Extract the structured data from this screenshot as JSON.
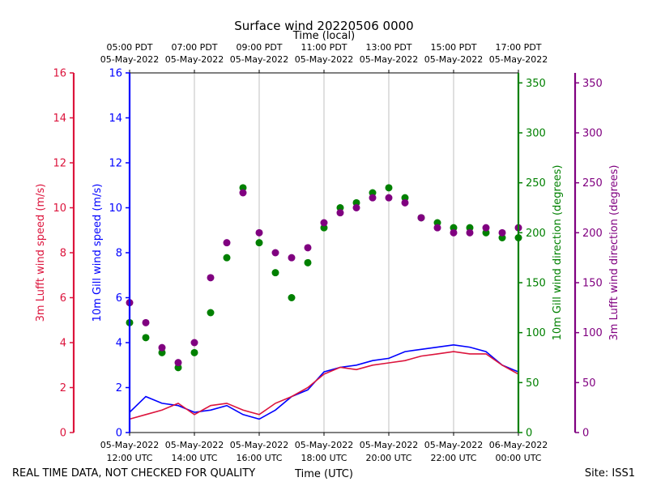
{
  "chart_data": {
    "type": "scatter",
    "title": "Surface wind 20220506 0000",
    "top_axis_label": "Time (local)",
    "xlabel": "Time (UTC)",
    "footer_left": "REAL TIME DATA, NOT CHECKED FOR QUALITY",
    "footer_right": "Site: ISS1",
    "x_range_hours_utc": [
      12,
      24
    ],
    "x_ticks_bottom": [
      {
        "hour": 12,
        "line1": "05-May-2022",
        "line2": "12:00 UTC"
      },
      {
        "hour": 14,
        "line1": "05-May-2022",
        "line2": "14:00 UTC"
      },
      {
        "hour": 16,
        "line1": "05-May-2022",
        "line2": "16:00 UTC"
      },
      {
        "hour": 18,
        "line1": "05-May-2022",
        "line2": "18:00 UTC"
      },
      {
        "hour": 20,
        "line1": "05-May-2022",
        "line2": "20:00 UTC"
      },
      {
        "hour": 22,
        "line1": "05-May-2022",
        "line2": "22:00 UTC"
      },
      {
        "hour": 24,
        "line1": "06-May-2022",
        "line2": "00:00 UTC"
      }
    ],
    "x_ticks_top": [
      {
        "hour": 12,
        "line1": "05:00 PDT",
        "line2": "05-May-2022"
      },
      {
        "hour": 14,
        "line1": "07:00 PDT",
        "line2": "05-May-2022"
      },
      {
        "hour": 16,
        "line1": "09:00 PDT",
        "line2": "05-May-2022"
      },
      {
        "hour": 18,
        "line1": "11:00 PDT",
        "line2": "05-May-2022"
      },
      {
        "hour": 20,
        "line1": "13:00 PDT",
        "line2": "05-May-2022"
      },
      {
        "hour": 22,
        "line1": "15:00 PDT",
        "line2": "05-May-2022"
      },
      {
        "hour": 24,
        "line1": "17:00 PDT",
        "line2": "05-May-2022"
      }
    ],
    "axes": {
      "lufft_speed": {
        "label": "3m Lufft wind speed (m/s)",
        "ylim": [
          0,
          16
        ],
        "ticks": [
          0,
          2,
          4,
          6,
          8,
          10,
          12,
          14,
          16
        ],
        "color": "#dc143c"
      },
      "gill_speed": {
        "label": "10m Gill wind speed (m/s)",
        "ylim": [
          0,
          16
        ],
        "ticks": [
          0,
          2,
          4,
          6,
          8,
          10,
          12,
          14,
          16
        ],
        "color": "#0000ff"
      },
      "gill_dir": {
        "label": "10m Gill wind direction (degrees)",
        "ylim": [
          0,
          360
        ],
        "ticks": [
          0,
          50,
          100,
          150,
          200,
          250,
          300,
          350
        ],
        "color": "#008000"
      },
      "lufft_dir": {
        "label": "3m Lufft wind direction (degrees)",
        "ylim": [
          0,
          360
        ],
        "ticks": [
          0,
          50,
          100,
          150,
          200,
          250,
          300,
          350
        ],
        "color": "#800080"
      }
    },
    "series": [
      {
        "name": "10m Gill wind speed",
        "axis": "gill_speed",
        "kind": "line",
        "color": "#0000ff",
        "points": [
          [
            12.0,
            0.9
          ],
          [
            12.5,
            1.6
          ],
          [
            13.0,
            1.3
          ],
          [
            13.5,
            1.2
          ],
          [
            14.0,
            0.9
          ],
          [
            14.5,
            1.0
          ],
          [
            15.0,
            1.2
          ],
          [
            15.5,
            0.8
          ],
          [
            16.0,
            0.6
          ],
          [
            16.5,
            1.0
          ],
          [
            17.0,
            1.6
          ],
          [
            17.5,
            1.9
          ],
          [
            18.0,
            2.7
          ],
          [
            18.5,
            2.9
          ],
          [
            19.0,
            3.0
          ],
          [
            19.5,
            3.2
          ],
          [
            20.0,
            3.3
          ],
          [
            20.5,
            3.6
          ],
          [
            21.0,
            3.7
          ],
          [
            21.5,
            3.8
          ],
          [
            22.0,
            3.9
          ],
          [
            22.5,
            3.8
          ],
          [
            23.0,
            3.6
          ],
          [
            23.5,
            3.0
          ],
          [
            24.0,
            2.7
          ]
        ]
      },
      {
        "name": "3m Lufft wind speed",
        "axis": "lufft_speed",
        "kind": "line",
        "color": "#dc143c",
        "points": [
          [
            12.0,
            0.6
          ],
          [
            12.5,
            0.8
          ],
          [
            13.0,
            1.0
          ],
          [
            13.5,
            1.3
          ],
          [
            14.0,
            0.8
          ],
          [
            14.5,
            1.2
          ],
          [
            15.0,
            1.3
          ],
          [
            15.5,
            1.0
          ],
          [
            16.0,
            0.8
          ],
          [
            16.5,
            1.3
          ],
          [
            17.0,
            1.6
          ],
          [
            17.5,
            2.0
          ],
          [
            18.0,
            2.6
          ],
          [
            18.5,
            2.9
          ],
          [
            19.0,
            2.8
          ],
          [
            19.5,
            3.0
          ],
          [
            20.0,
            3.1
          ],
          [
            20.5,
            3.2
          ],
          [
            21.0,
            3.4
          ],
          [
            21.5,
            3.5
          ],
          [
            22.0,
            3.6
          ],
          [
            22.5,
            3.5
          ],
          [
            23.0,
            3.5
          ],
          [
            23.5,
            3.0
          ],
          [
            24.0,
            2.6
          ]
        ]
      },
      {
        "name": "10m Gill wind direction",
        "axis": "gill_dir",
        "kind": "scatter",
        "color": "#008000",
        "points": [
          [
            12.0,
            110
          ],
          [
            12.5,
            95
          ],
          [
            13.0,
            80
          ],
          [
            13.5,
            65
          ],
          [
            14.0,
            80
          ],
          [
            14.5,
            120
          ],
          [
            15.0,
            175
          ],
          [
            15.5,
            245
          ],
          [
            16.0,
            190
          ],
          [
            16.5,
            160
          ],
          [
            17.0,
            135
          ],
          [
            17.5,
            170
          ],
          [
            18.0,
            205
          ],
          [
            18.5,
            225
          ],
          [
            19.0,
            230
          ],
          [
            19.5,
            240
          ],
          [
            20.0,
            245
          ],
          [
            20.5,
            235
          ],
          [
            21.0,
            215
          ],
          [
            21.5,
            210
          ],
          [
            22.0,
            205
          ],
          [
            22.5,
            205
          ],
          [
            23.0,
            200
          ],
          [
            23.5,
            195
          ],
          [
            24.0,
            195
          ]
        ]
      },
      {
        "name": "3m Lufft wind direction",
        "axis": "lufft_dir",
        "kind": "scatter",
        "color": "#800080",
        "points": [
          [
            12.0,
            130
          ],
          [
            12.5,
            110
          ],
          [
            13.0,
            85
          ],
          [
            13.5,
            70
          ],
          [
            14.0,
            90
          ],
          [
            14.5,
            155
          ],
          [
            15.0,
            190
          ],
          [
            15.5,
            240
          ],
          [
            16.0,
            200
          ],
          [
            16.5,
            180
          ],
          [
            17.0,
            175
          ],
          [
            17.5,
            185
          ],
          [
            18.0,
            210
          ],
          [
            18.5,
            220
          ],
          [
            19.0,
            225
          ],
          [
            19.5,
            235
          ],
          [
            20.0,
            235
          ],
          [
            20.5,
            230
          ],
          [
            21.0,
            215
          ],
          [
            21.5,
            205
          ],
          [
            22.0,
            200
          ],
          [
            22.5,
            200
          ],
          [
            23.0,
            205
          ],
          [
            23.5,
            200
          ],
          [
            24.0,
            205
          ]
        ]
      }
    ]
  }
}
